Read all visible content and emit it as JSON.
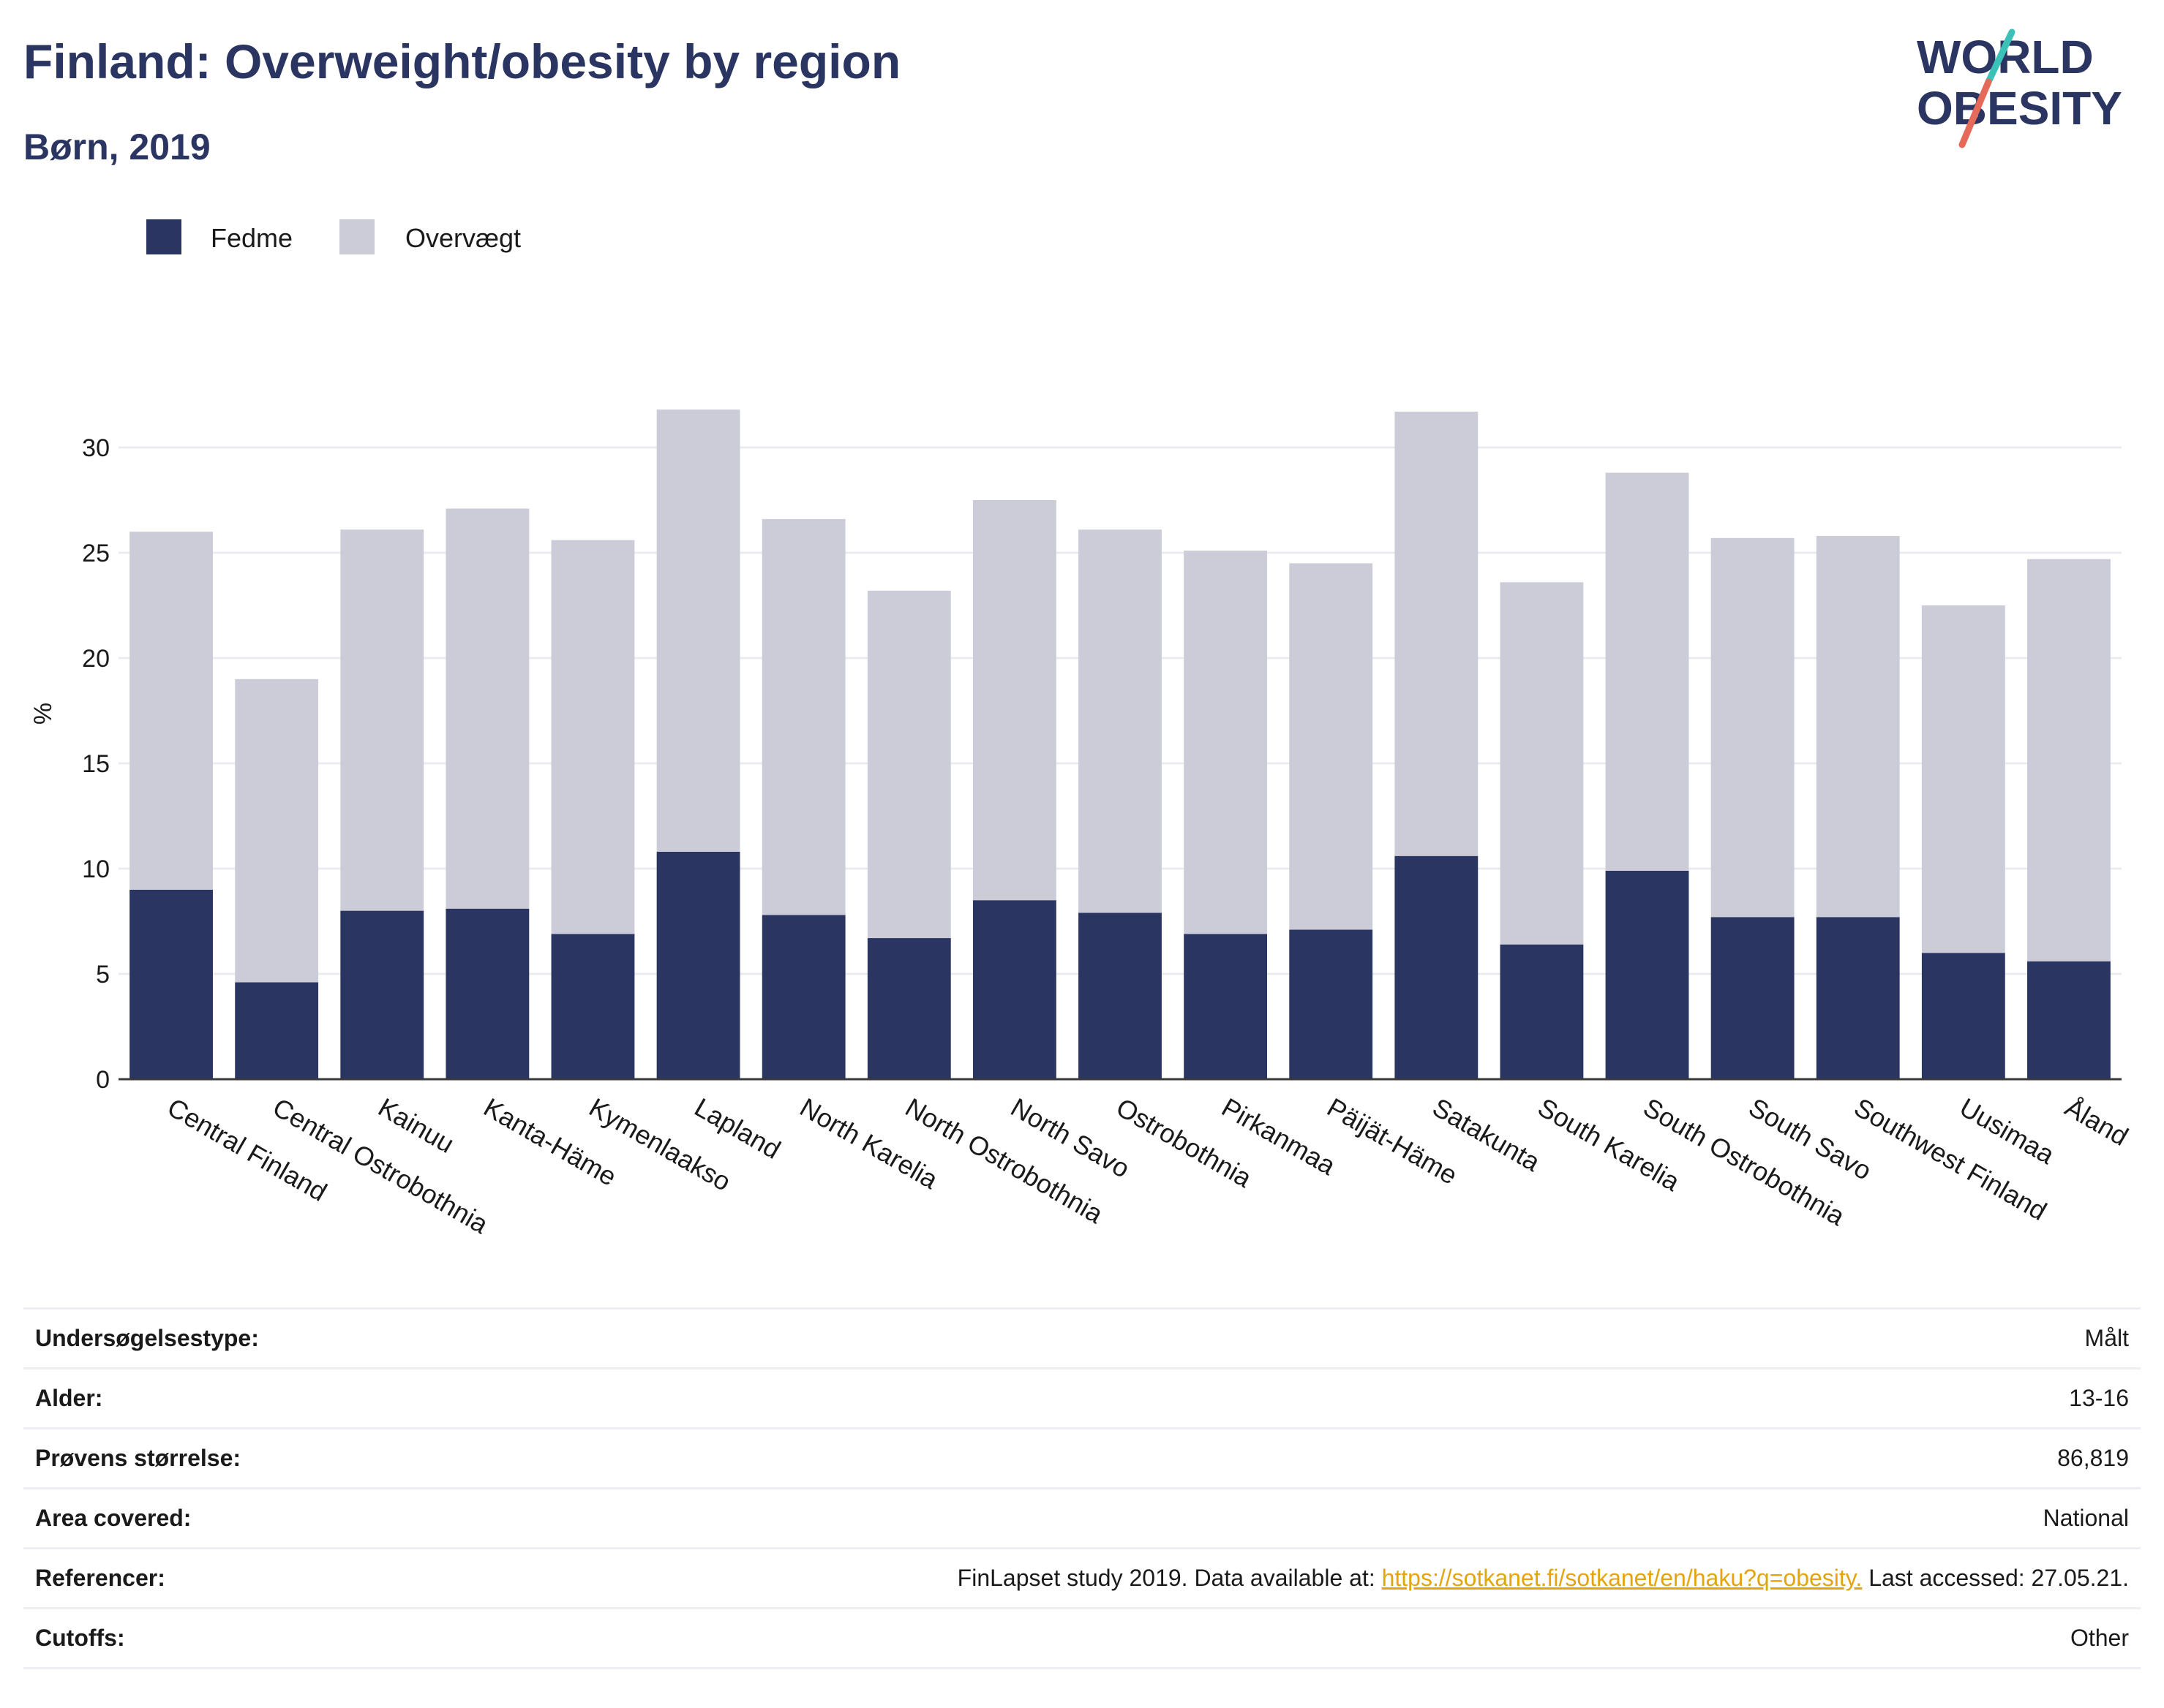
{
  "header": {
    "title": "Finland: Overweight/obesity by region",
    "subtitle": "Børn, 2019"
  },
  "logo": {
    "line1": "WORLD",
    "line2": "OBESITY"
  },
  "colors": {
    "obesity": "#2b3561",
    "overweight": "#cbccd8",
    "accent": "#e2a50d",
    "logo_red": "#e66a5a",
    "logo_teal": "#3cc1b9"
  },
  "chart_data": {
    "type": "bar",
    "stacked": true,
    "ylabel": "%",
    "ylim": [
      0,
      32.5
    ],
    "yticks": [
      0,
      5,
      10,
      15,
      20,
      25,
      30
    ],
    "grid": true,
    "legend_position": "top-left",
    "categories": [
      "Central Finland",
      "Central Ostrobothnia",
      "Kainuu",
      "Kanta-Häme",
      "Kymenlaakso",
      "Lapland",
      "North Karelia",
      "North Ostrobothnia",
      "North Savo",
      "Ostrobothnia",
      "Pirkanmaa",
      "Päijät-Häme",
      "Satakunta",
      "South Karelia",
      "South Ostrobothnia",
      "South Savo",
      "Southwest Finland",
      "Uusimaa",
      "Åland"
    ],
    "series": [
      {
        "name": "Fedme",
        "values": [
          9.0,
          4.6,
          8.0,
          8.1,
          6.9,
          10.8,
          7.8,
          6.7,
          8.5,
          7.9,
          6.9,
          7.1,
          10.6,
          6.4,
          9.9,
          7.7,
          7.7,
          6.0,
          5.6
        ]
      },
      {
        "name": "Overvægt",
        "values": [
          17.0,
          14.4,
          18.1,
          19.0,
          18.7,
          21.0,
          18.8,
          16.5,
          19.0,
          18.2,
          18.2,
          17.4,
          21.1,
          17.2,
          18.9,
          18.0,
          18.1,
          16.5,
          19.1
        ]
      }
    ]
  },
  "info": {
    "rows": [
      {
        "key": "Undersøgelsestype:",
        "value": "Målt"
      },
      {
        "key": "Alder:",
        "value": "13-16"
      },
      {
        "key": "Prøvens størrelse:",
        "value": "86,819"
      },
      {
        "key": "Area covered:",
        "value": "National"
      },
      {
        "key": "Referencer:",
        "value_prefix": "FinLapset study 2019. Data available at:",
        "link": "https://sotkanet.fi/sotkanet/en/haku?q=obesity.",
        "value_suffix": "Last accessed: 27.05.21."
      },
      {
        "key": "Cutoffs:",
        "value": "Other"
      }
    ]
  }
}
